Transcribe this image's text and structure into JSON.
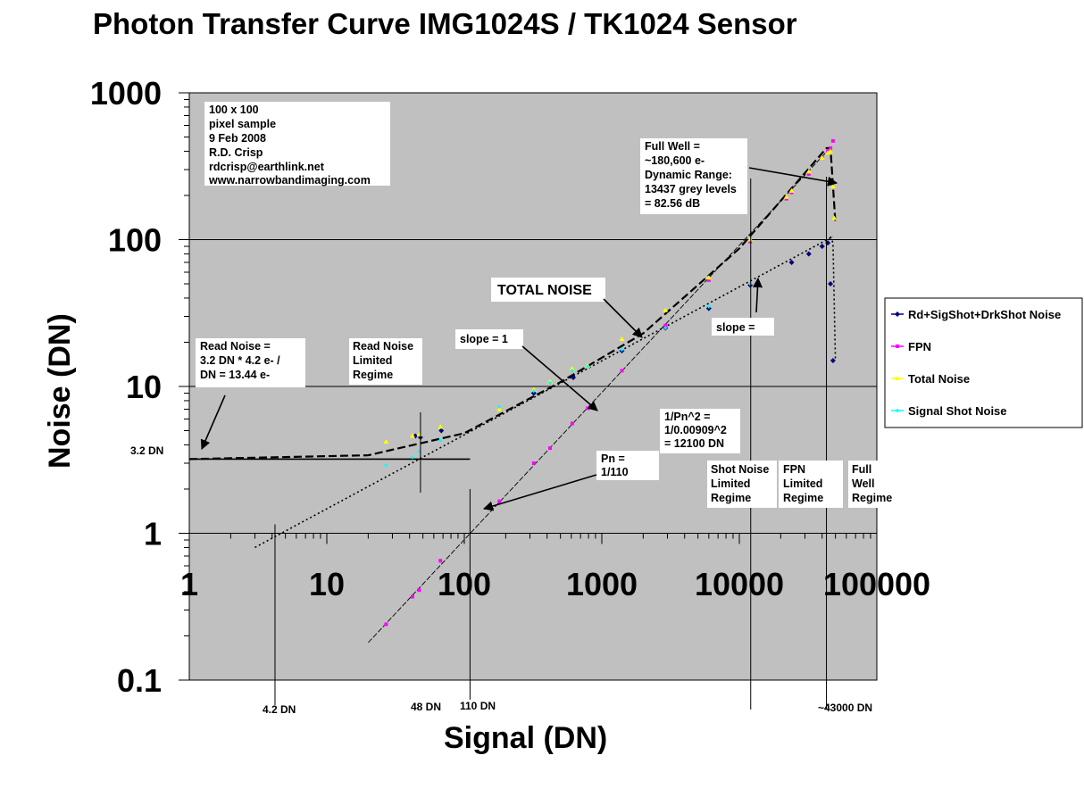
{
  "chart_data": {
    "type": "scatter",
    "title": "Photon Transfer Curve IMG1024S / TK1024 Sensor",
    "xlabel": "Signal (DN)",
    "ylabel": "Noise (DN)",
    "x_scale": "log",
    "y_scale": "log",
    "xlim": [
      1,
      100000
    ],
    "ylim": [
      0.1,
      1000
    ],
    "x_ticks": [
      "1",
      "10",
      "100",
      "1000",
      "10000",
      "100000"
    ],
    "y_ticks": [
      "0.1",
      "1",
      "10",
      "100",
      "1000"
    ],
    "grid": "horizontal major lines",
    "legend_position": "right",
    "series": [
      {
        "name": "Rd+SigShot+DrkShot Noise",
        "color": "#000080",
        "marker": "diamond",
        "x": [
          44,
          48,
          68,
          320,
          620,
          1400,
          2900,
          6000,
          12000,
          24000,
          32000,
          40000,
          44000,
          46000,
          48000
        ],
        "y": [
          4.6,
          4.5,
          5.0,
          9.0,
          11.5,
          17.5,
          25,
          34,
          49,
          70,
          80,
          90,
          95,
          50,
          15
        ]
      },
      {
        "name": "FPN",
        "color": "#ff00ff",
        "marker": "square",
        "x": [
          27,
          42,
          47,
          67,
          180,
          320,
          420,
          610,
          790,
          1400,
          2900,
          6000,
          12000,
          22000,
          24000,
          32000,
          40000,
          44000,
          46000,
          48000
        ],
        "y": [
          0.24,
          0.37,
          0.41,
          0.65,
          1.65,
          3.0,
          3.8,
          5.6,
          7.1,
          12.8,
          26,
          53,
          97,
          190,
          210,
          280,
          360,
          400,
          420,
          470
        ]
      },
      {
        "name": "Total Noise",
        "color": "#ffff00",
        "marker": "triangle",
        "x": [
          27,
          42,
          47,
          67,
          180,
          320,
          420,
          610,
          790,
          1400,
          2900,
          6000,
          12000,
          22000,
          24000,
          32000,
          40000,
          44000,
          46000,
          48000,
          49000
        ],
        "y": [
          4.2,
          4.6,
          4.7,
          5.3,
          7.0,
          9.5,
          10.8,
          13.2,
          13.8,
          21,
          33,
          55,
          100,
          195,
          215,
          290,
          360,
          390,
          400,
          230,
          140
        ]
      },
      {
        "name": "Signal Shot Noise",
        "color": "#00ffff",
        "marker": "cross",
        "x": [
          27,
          42,
          47,
          67,
          180,
          320,
          420,
          610,
          790,
          1400,
          2900,
          6000,
          12000
        ],
        "y": [
          2.9,
          3.3,
          3.6,
          4.3,
          7.3,
          9.3,
          10.6,
          12.8,
          13.6,
          17.8,
          25,
          35,
          50
        ]
      }
    ],
    "trend_lines": [
      {
        "name": "read-noise-floor",
        "style": "solid",
        "x": [
          1,
          110
        ],
        "y": [
          3.2,
          3.2
        ]
      },
      {
        "name": "shot-noise-fit",
        "style": "dotted",
        "x": [
          3,
          48000
        ],
        "y": [
          0.8,
          105
        ]
      },
      {
        "name": "fpn-fit",
        "style": "dashed",
        "x": [
          20,
          44000
        ],
        "y": [
          0.18,
          405
        ]
      },
      {
        "name": "total-fit",
        "style": "dashed",
        "x": [
          1,
          20,
          100,
          500,
          2000,
          10000,
          43000,
          46000,
          50000
        ],
        "y": [
          3.2,
          3.4,
          4.8,
          10.7,
          23,
          87,
          420,
          420,
          130
        ]
      },
      {
        "name": "shot-fpn-tail",
        "style": "dotted",
        "x": [
          46000,
          48000,
          50000
        ],
        "y": [
          105,
          95,
          15
        ]
      }
    ],
    "annotations": {
      "sample_box": [
        "100 x 100",
        "pixel sample",
        "9 Feb 2008",
        "R.D. Crisp",
        "rdcrisp@earthlink.net",
        "www.narrowbandimaging.com"
      ],
      "full_well_box": [
        "Full Well =",
        "~180,600 e-",
        "Dynamic Range:",
        "13437 grey levels",
        "= 82.56 dB"
      ],
      "total_noise": "TOTAL NOISE",
      "read_noise_box": [
        "Read Noise =",
        "3.2 DN * 4.2 e- /",
        "DN = 13.44 e-"
      ],
      "read_noise_regime": [
        "Read Noise",
        "Limited",
        "Regime"
      ],
      "slope1": "slope = 1",
      "slope_half": "slope =",
      "pn_sq_box": [
        "1/Pn^2 =",
        "1/0.00909^2",
        "= 12100 DN"
      ],
      "pn_box": [
        "Pn =",
        "1/110"
      ],
      "shot_regime": [
        "Shot Noise",
        "Limited",
        "Regime"
      ],
      "fpn_regime": [
        "FPN",
        "Limited",
        "Regime"
      ],
      "full_well_regime": [
        "Full",
        "Well",
        "Regime"
      ],
      "label_3_2dn": "3.2 DN",
      "label_4_2dn": "4.2 DN",
      "label_48dn": "48 DN",
      "label_110dn": "110 DN",
      "label_43000dn": "~43000 DN"
    }
  }
}
